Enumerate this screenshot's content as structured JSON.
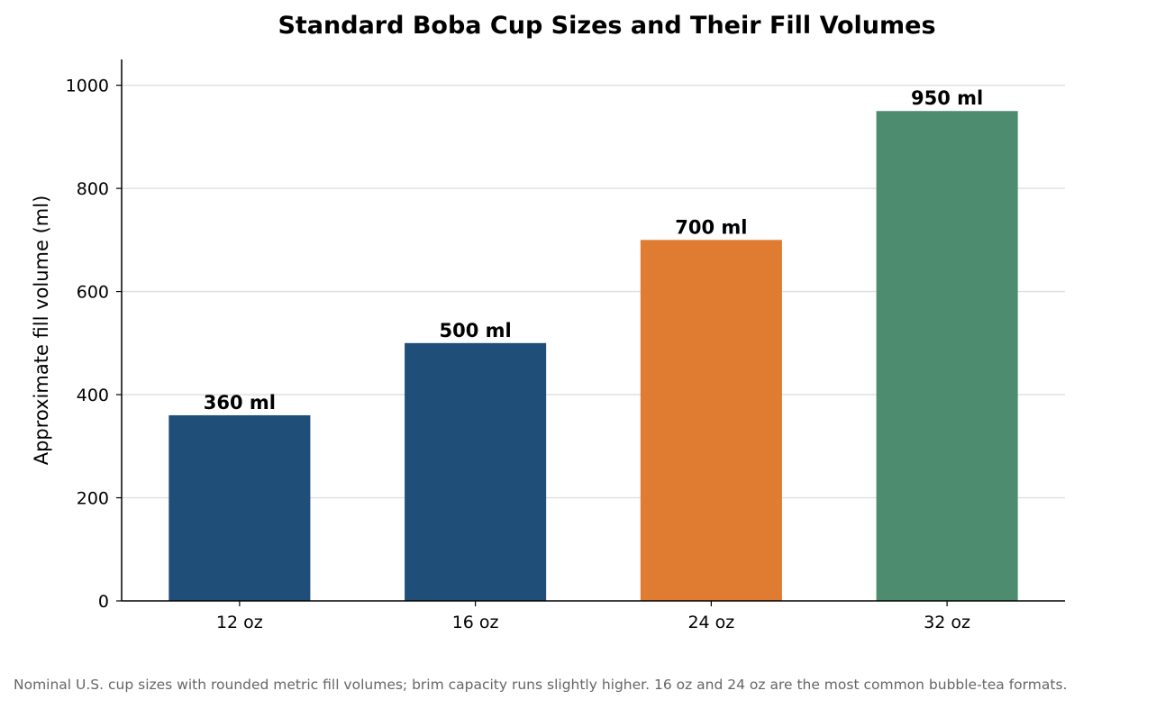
{
  "chart_data": {
    "type": "bar",
    "title": "Standard Boba Cup Sizes and Their Fill Volumes",
    "xlabel": "",
    "ylabel": "Approximate fill volume (ml)",
    "categories": [
      "12 oz",
      "16 oz",
      "24 oz",
      "32 oz"
    ],
    "values": [
      360,
      500,
      700,
      950
    ],
    "data_labels": [
      "360 ml",
      "500 ml",
      "700 ml",
      "950 ml"
    ],
    "colors": [
      "#1f4e79",
      "#1f4e79",
      "#e07b32",
      "#4d8c6f"
    ],
    "ylim": [
      0,
      1050
    ],
    "yticks": [
      0,
      200,
      400,
      600,
      800,
      1000
    ],
    "grid": "horizontal",
    "legend": "none"
  },
  "footnote": "Nominal U.S. cup sizes with rounded metric fill volumes; brim capacity runs slightly higher. 16 oz and 24 oz are the most common bubble-tea formats."
}
